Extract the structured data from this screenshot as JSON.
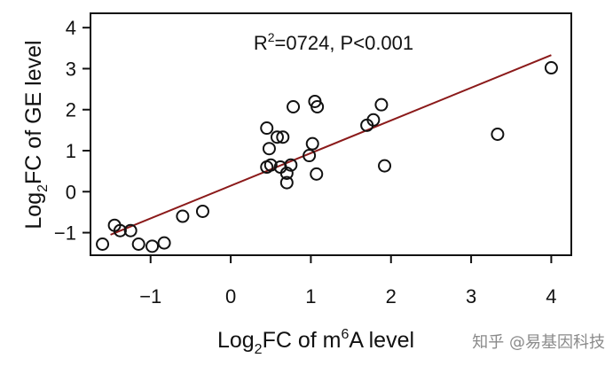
{
  "chart_data": {
    "type": "scatter",
    "title": "",
    "annotation": {
      "r_sup": "2",
      "r_prefix": "R",
      "text": "=0724, P<0.001"
    },
    "xlabel": {
      "pre": "Log",
      "sub": "2",
      "mid": "FC of m",
      "sup": "6",
      "post": "A level"
    },
    "ylabel": {
      "pre": "Log",
      "sub": "2",
      "post": "FC of GE level"
    },
    "xlim": [
      -1.75,
      4.25
    ],
    "ylim": [
      -1.55,
      4.35
    ],
    "xticks": [
      -1,
      0,
      1,
      2,
      3,
      4
    ],
    "yticks": [
      -1,
      0,
      1,
      2,
      3,
      4
    ],
    "xtick_labels": [
      "−1",
      "0",
      "1",
      "2",
      "3",
      "4"
    ],
    "ytick_labels": [
      "−1",
      "0",
      "1",
      "2",
      "3",
      "4"
    ],
    "grid": false,
    "fit_line": {
      "x": [
        -1.5,
        4.0
      ],
      "y": [
        -1.05,
        3.33
      ]
    },
    "points": [
      {
        "x": -1.6,
        "y": -1.28
      },
      {
        "x": -1.45,
        "y": -0.82
      },
      {
        "x": -1.38,
        "y": -0.95
      },
      {
        "x": -1.25,
        "y": -0.95
      },
      {
        "x": -1.15,
        "y": -1.28
      },
      {
        "x": -0.98,
        "y": -1.33
      },
      {
        "x": -0.83,
        "y": -1.25
      },
      {
        "x": -0.6,
        "y": -0.6
      },
      {
        "x": -0.35,
        "y": -0.48
      },
      {
        "x": 0.45,
        "y": 1.55
      },
      {
        "x": 0.48,
        "y": 1.05
      },
      {
        "x": 0.45,
        "y": 0.6
      },
      {
        "x": 0.5,
        "y": 0.65
      },
      {
        "x": 0.58,
        "y": 1.33
      },
      {
        "x": 0.65,
        "y": 1.33
      },
      {
        "x": 0.62,
        "y": 0.6
      },
      {
        "x": 0.7,
        "y": 0.45
      },
      {
        "x": 0.7,
        "y": 0.22
      },
      {
        "x": 0.75,
        "y": 0.65
      },
      {
        "x": 0.78,
        "y": 2.07
      },
      {
        "x": 0.98,
        "y": 0.88
      },
      {
        "x": 1.02,
        "y": 1.17
      },
      {
        "x": 1.05,
        "y": 2.2
      },
      {
        "x": 1.08,
        "y": 2.07
      },
      {
        "x": 1.07,
        "y": 0.43
      },
      {
        "x": 1.7,
        "y": 1.62
      },
      {
        "x": 1.78,
        "y": 1.75
      },
      {
        "x": 1.88,
        "y": 2.12
      },
      {
        "x": 1.92,
        "y": 0.63
      },
      {
        "x": 3.33,
        "y": 1.4
      },
      {
        "x": 4.0,
        "y": 3.02
      }
    ],
    "colors": {
      "points": "#111111",
      "fit_line": "#8b1a1a",
      "axis": "#111111"
    }
  },
  "watermark": "知乎 @易基因科技"
}
